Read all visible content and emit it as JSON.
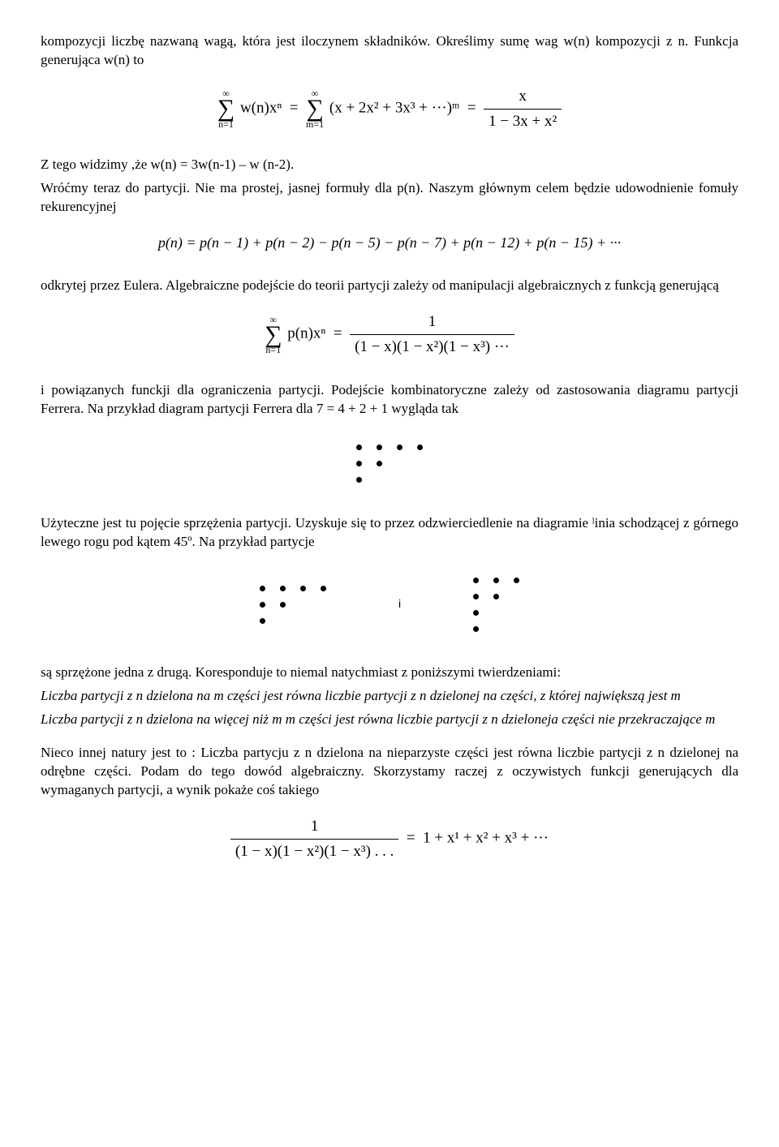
{
  "p1": "kompozycji liczbę nazwaną wagą, która jest iloczynem składników. Określimy sumę wag w(n) kompozycji z n. Funkcja generująca w(n) to",
  "eq1": {
    "lhs_sum_lower": "n=1",
    "lhs_sum_upper": "∞",
    "lhs_term": "w(n)xⁿ",
    "mid_sum_lower": "m=1",
    "mid_sum_upper": "∞",
    "mid_term": "(x + 2x² + 3x³ + ···)ᵐ",
    "rhs_num": "x",
    "rhs_den": "1 − 3x + x²"
  },
  "p2": "Z tego widzimy ,że w(n) = 3w(n-1) – w (n-2).",
  "p3": "Wróćmy teraz do partycji. Nie ma prostej, jasnej formuły dla p(n). Naszym głównym celem będzie udowodnienie fomuły rekurencyjnej",
  "eq2": "p(n) = p(n − 1) + p(n − 2) − p(n − 5) − p(n − 7) + p(n − 12) + p(n − 15) + ···",
  "p4": "odkrytej przez Eulera. Algebraiczne podejście do teorii partycji zależy od manipulacji algebraicznych z funkcją generującą",
  "eq3": {
    "sum_lower": "n=1",
    "sum_upper": "∞",
    "sum_term": "p(n)xⁿ",
    "rhs_num": "1",
    "rhs_den": "(1 − x)(1 − x²)(1 − x³) ···"
  },
  "p5": "i powiązanych funckji dla ograniczenia partycji. Podejście kombinatoryczne zależy od zastosowania diagramu partycji Ferrera. Na przykład diagram partycji Ferrera dla 7 =  4 + 2 + 1 wygląda tak",
  "ferrer_single": {
    "rows": [
      4,
      2,
      1
    ],
    "dot_color": "#000000"
  },
  "p6": "Użyteczne jest tu pojęcie sprzężenia partycji. Uzyskuje się to przez odzwierciedlenie na diagramie ˡinia schodzącej z górnego lewego rogu pod kątem 45º. Na przykład partycje",
  "ferrer_pair": {
    "left_rows": [
      4,
      2,
      1
    ],
    "sep": "i",
    "right_rows": [
      3,
      2,
      1,
      1
    ]
  },
  "p7a": "są sprzężone jedna z drugą. Koresponduje to niemal natychmiast z poniższymi twierdzeniami:",
  "p7b": "Liczba partycji z n dzielona na m części jest równa liczbie partycji z n  dzielonej na części, z której największą jest m",
  "p7c": "Liczba partycji z n dzielona na więcej niż m m części jest równa liczbie partycji z n dzieloneja części nie przekraczające m",
  "p8": "Nieco innej natury jest to : Liczba partycju z n dzielona na nieparzyste części jest równa liczbie partycji z n dzielonej na odrębne części. Podam do tego dowód algebraiczny. Skorzystamy raczej z oczywistych funkcji generujących dla wymaganych partycji, a wynik pokaże coś takiego",
  "eq4": {
    "lhs_num": "1",
    "lhs_den": "(1 − x)(1 − x²)(1 − x³) . . .",
    "rhs": "1 + x¹ + x² + x³ + ···"
  }
}
